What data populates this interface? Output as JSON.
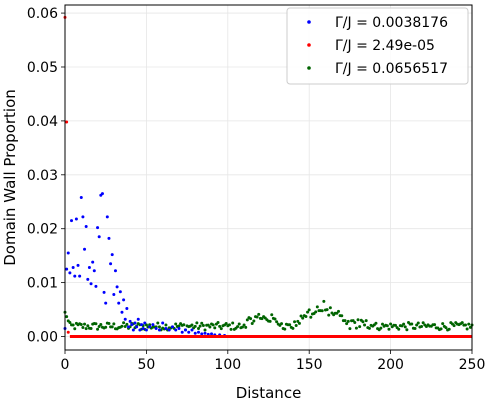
{
  "chart_data": {
    "type": "scatter",
    "xlabel": "Distance",
    "ylabel": "Domain Wall Proportion",
    "xlim": [
      0,
      250
    ],
    "ylim": [
      -0.0025,
      0.0615
    ],
    "x_ticks": [
      0,
      50,
      100,
      150,
      200,
      250
    ],
    "x_tick_labels": [
      "0",
      "50",
      "100",
      "150",
      "200",
      "250"
    ],
    "y_ticks": [
      0.0,
      0.01,
      0.02,
      0.03,
      0.04,
      0.05,
      0.06
    ],
    "y_tick_labels": [
      "0.00",
      "0.01",
      "0.02",
      "0.03",
      "0.04",
      "0.05",
      "0.06"
    ],
    "grid": true,
    "legend_position": "top-right",
    "series": [
      {
        "name": "Γ/J = 0.0038176",
        "color": "#0000ff",
        "points": [
          [
            0,
            0.0015
          ],
          [
            1,
            0.0125
          ],
          [
            2,
            0.0155
          ],
          [
            3,
            0.0118
          ],
          [
            4,
            0.0215
          ],
          [
            5,
            0.0128
          ],
          [
            6,
            0.0112
          ],
          [
            7,
            0.0218
          ],
          [
            8,
            0.0132
          ],
          [
            9,
            0.0112
          ],
          [
            10,
            0.0258
          ],
          [
            11,
            0.0222
          ],
          [
            12,
            0.0162
          ],
          [
            13,
            0.0204
          ],
          [
            14,
            0.0106
          ],
          [
            15,
            0.0128
          ],
          [
            16,
            0.0098
          ],
          [
            17,
            0.0138
          ],
          [
            18,
            0.0122
          ],
          [
            19,
            0.0093
          ],
          [
            20,
            0.0202
          ],
          [
            21,
            0.0185
          ],
          [
            22,
            0.0262
          ],
          [
            23,
            0.0265
          ],
          [
            24,
            0.0082
          ],
          [
            25,
            0.0062
          ],
          [
            26,
            0.0222
          ],
          [
            27,
            0.0182
          ],
          [
            28,
            0.0135
          ],
          [
            29,
            0.0152
          ],
          [
            30,
            0.0078
          ],
          [
            31,
            0.0122
          ],
          [
            32,
            0.0092
          ],
          [
            33,
            0.0062
          ],
          [
            34,
            0.0083
          ],
          [
            35,
            0.0045
          ],
          [
            36,
            0.0068
          ],
          [
            37,
            0.0032
          ],
          [
            38,
            0.0052
          ],
          [
            39,
            0.0018
          ],
          [
            40,
            0.0028
          ],
          [
            41,
            0.0022
          ],
          [
            42,
            0.0012
          ],
          [
            43,
            0.0025
          ],
          [
            44,
            0.0018
          ],
          [
            45,
            0.0032
          ],
          [
            46,
            0.0012
          ],
          [
            47,
            0.0022
          ],
          [
            48,
            0.0015
          ],
          [
            49,
            0.0025
          ],
          [
            50,
            0.0012
          ],
          [
            52,
            0.0018
          ],
          [
            54,
            0.0022
          ],
          [
            56,
            0.0015
          ],
          [
            58,
            0.0012
          ],
          [
            60,
            0.0025
          ],
          [
            62,
            0.0015
          ],
          [
            64,
            0.0012
          ],
          [
            66,
            0.0018
          ],
          [
            68,
            0.0012
          ],
          [
            70,
            0.0015
          ],
          [
            72,
            0.0008
          ],
          [
            74,
            0.0012
          ],
          [
            76,
            0.0008
          ],
          [
            78,
            0.0012
          ],
          [
            80,
            0.0006
          ],
          [
            82,
            0.0008
          ],
          [
            84,
            0.0005
          ],
          [
            86,
            0.0006
          ],
          [
            88,
            0.0004
          ],
          [
            90,
            0.0005
          ],
          [
            92,
            0.0003
          ],
          [
            95,
            0.0003
          ],
          [
            98,
            0.0002
          ]
        ]
      },
      {
        "name": "Γ/J = 2.49e-05",
        "color": "#ff0000",
        "points": [
          [
            0,
            0.0592
          ],
          [
            1,
            0.0398
          ],
          [
            2,
            0.0008
          ]
        ],
        "baseline": {
          "x_start": 3,
          "x_end": 250,
          "y": 0.0
        }
      },
      {
        "name": "Γ/J = 0.0656517",
        "color": "#006400",
        "points": []
      }
    ]
  }
}
